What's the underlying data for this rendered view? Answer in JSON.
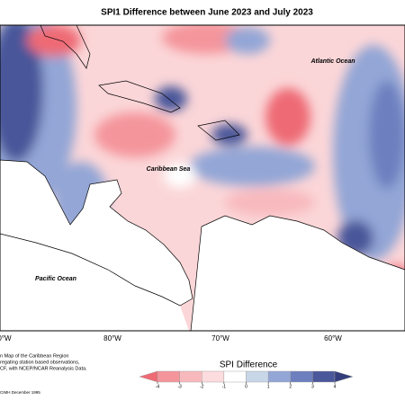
{
  "title": "SPI1 Difference between June 2023 and July 2023",
  "ocean_labels": [
    "Atlantic Ocean",
    "Caribbean Sea",
    "Pacific Ocean"
  ],
  "longitude_labels": [
    "0°W",
    "80°W",
    "70°W",
    "60°W"
  ],
  "legend": {
    "title": "SPI Difference",
    "ticks": [
      -4,
      -3,
      -2,
      -1,
      0,
      1,
      2,
      3,
      4
    ],
    "colors": [
      "#ee6b74",
      "#f4959b",
      "#f8b9bd",
      "#fcdcde",
      "#ffffff",
      "#c8d6e8",
      "#93a6d6",
      "#6d7fbf",
      "#4a579a",
      "#343d7c"
    ]
  },
  "credits": [
    "n Map of the Caribbean Region",
    "regating station based observations,",
    "CF, with NCEP/NCAR Reanalysis Data.",
    "CIMH December 1995"
  ]
}
